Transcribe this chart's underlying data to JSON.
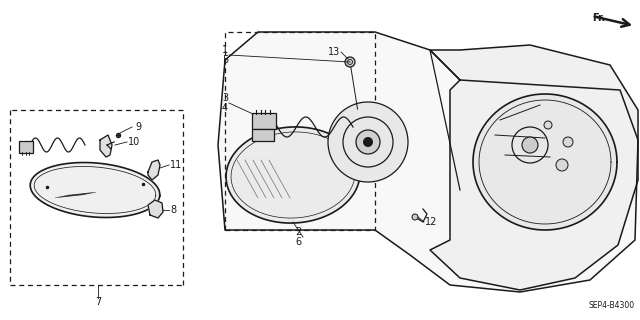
{
  "bg_color": "#ffffff",
  "line_color": "#1a1a1a",
  "fig_width": 6.4,
  "fig_height": 3.2,
  "dpi": 100,
  "diagram_code": "SEP4-B4300",
  "fr_label": "Fr."
}
